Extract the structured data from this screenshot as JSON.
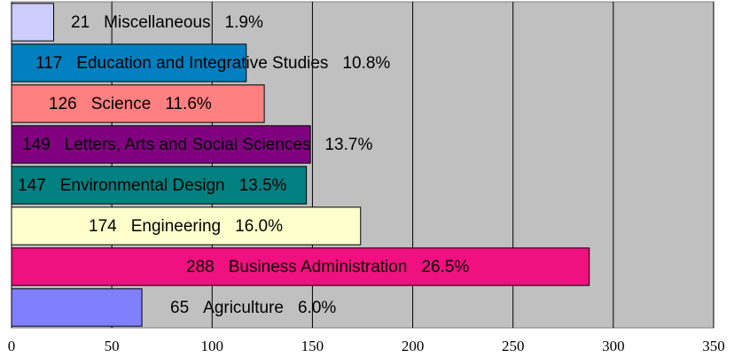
{
  "chart_data": {
    "type": "barh",
    "categories": [
      "Miscellaneous",
      "Education and Integrative Studies",
      "Science",
      "Letters, Arts and Social Sciences",
      "Environmental Design",
      "Engineering",
      "Business Administration",
      "Agriculture"
    ],
    "values": [
      21,
      117,
      126,
      149,
      147,
      174,
      288,
      65
    ],
    "percent_labels": [
      "1.9%",
      "10.8%",
      "11.6%",
      "13.7%",
      "13.5%",
      "16.0%",
      "26.5%",
      "6.0%"
    ],
    "colors": [
      "#ccccff",
      "#0080c0",
      "#ff8080",
      "#800080",
      "#008080",
      "#ffffcc",
      "#f0107f",
      "#8080ff"
    ],
    "xlim": [
      0,
      350
    ],
    "xticks": [
      0,
      50,
      100,
      150,
      200,
      250,
      300,
      350
    ],
    "grid": true,
    "background": "#c0c0c0"
  }
}
